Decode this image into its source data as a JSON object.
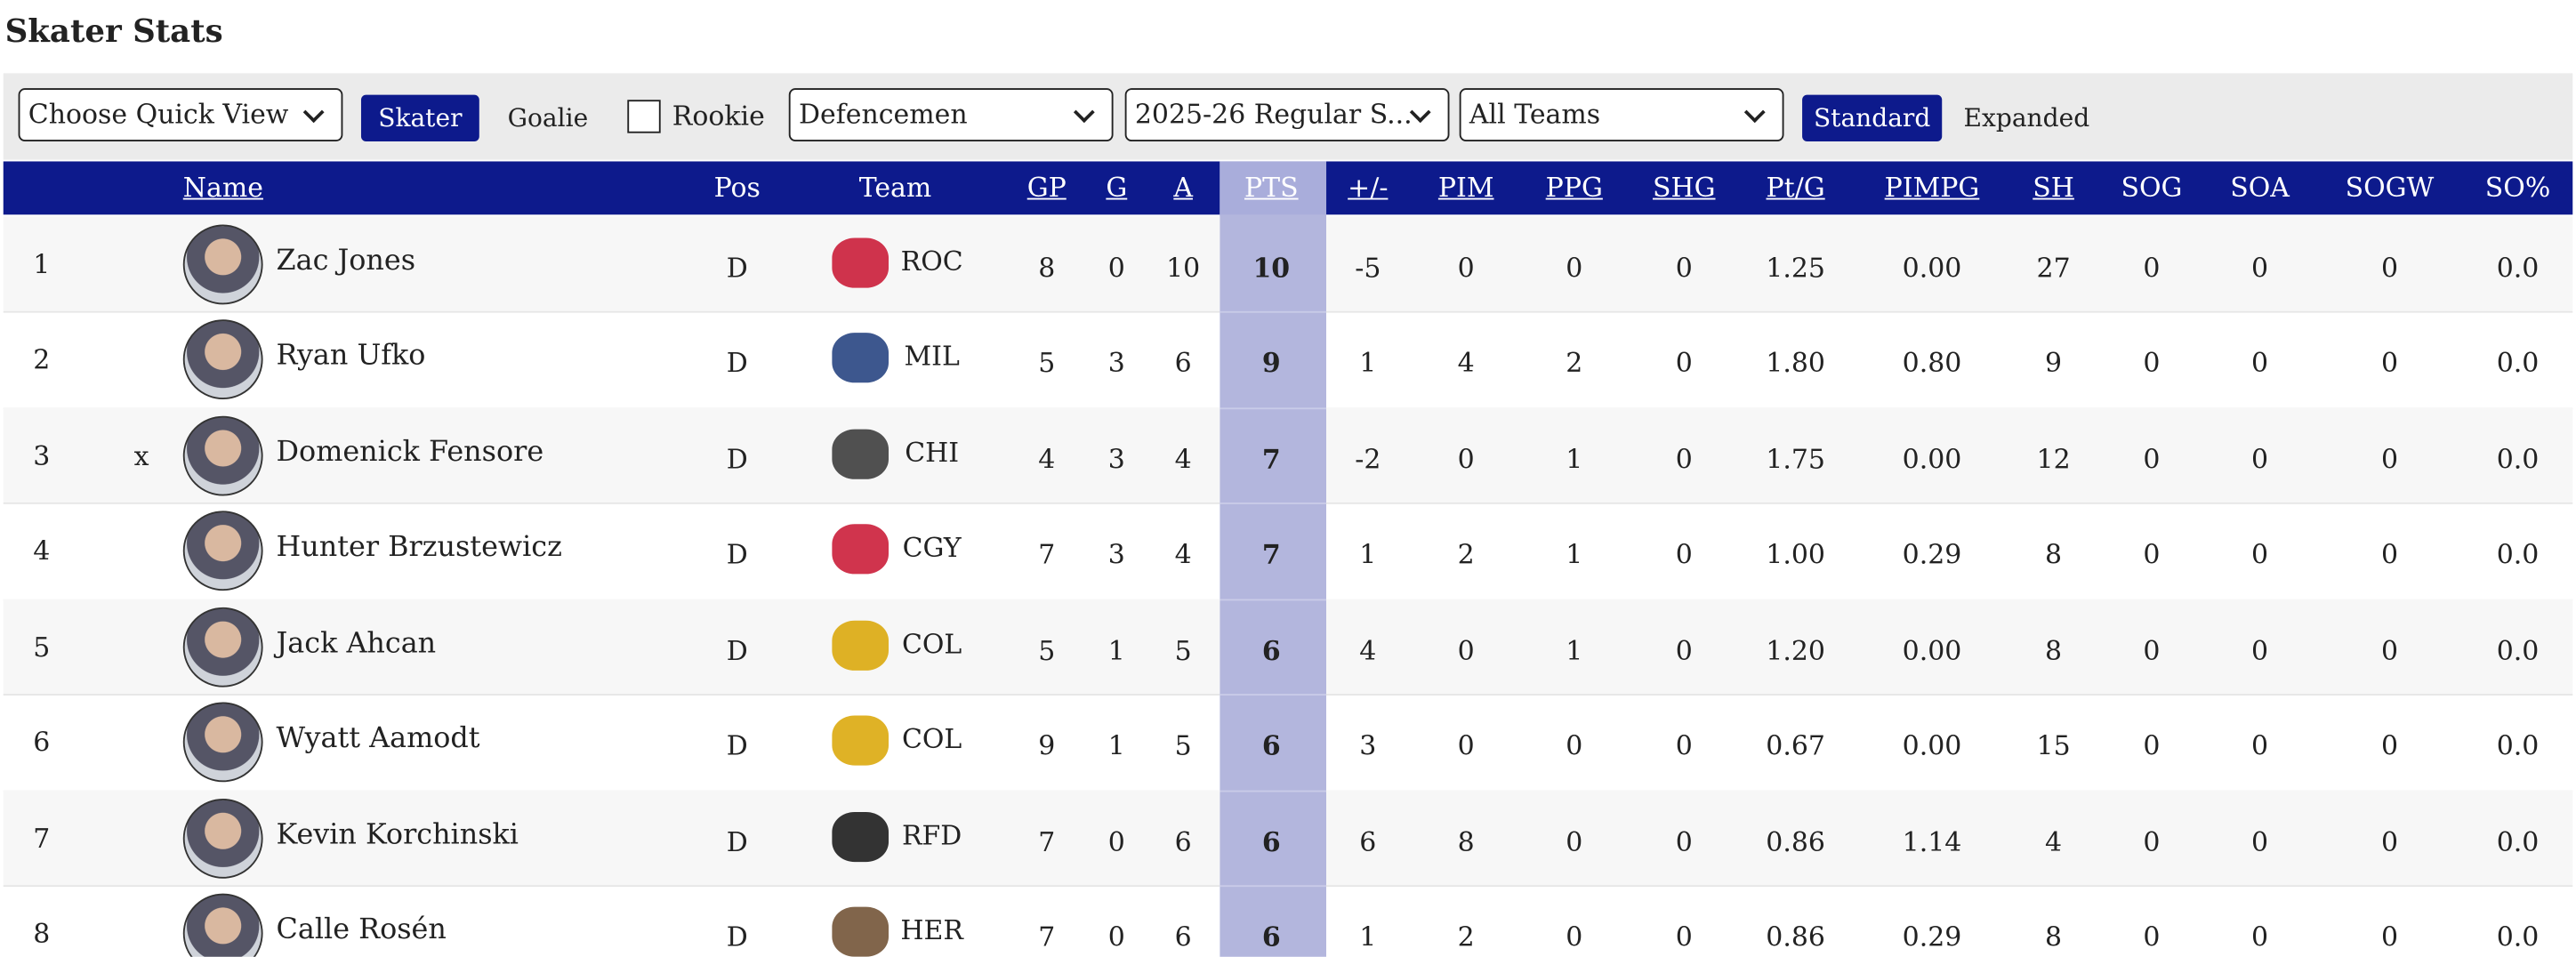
{
  "title": "Skater Stats",
  "toolbar": {
    "quick_view": "Choose Quick View",
    "skater": "Skater",
    "goalie": "Goalie",
    "rookie": "Rookie",
    "position": "Defencemen",
    "season": "2025-26 Regular S...",
    "teams": "All Teams",
    "standard": "Standard",
    "expanded": "Expanded"
  },
  "table": {
    "columns": [
      "Name",
      "Pos",
      "Team",
      "GP",
      "G",
      "A",
      "PTS",
      "+/-",
      "PIM",
      "PPG",
      "SHG",
      "Pt/G",
      "PIMPG",
      "SH",
      "SOG",
      "SOA",
      "SOGW",
      "SO%"
    ],
    "rows": [
      {
        "rank": 1,
        "name": "Zac Jones",
        "pos": "D",
        "team": "ROC",
        "stats": [
          8,
          0,
          10,
          10,
          -5,
          0,
          0,
          0,
          "1.25",
          "0.00",
          27,
          0,
          0,
          0,
          "0.0"
        ]
      },
      {
        "rank": 2,
        "name": "Ryan Ufko",
        "pos": "D",
        "team": "MIL",
        "stats": [
          5,
          3,
          6,
          9,
          1,
          4,
          2,
          0,
          "1.80",
          "0.80",
          9,
          0,
          0,
          0,
          "0.0"
        ]
      },
      {
        "rank": 3,
        "rookie": "x",
        "name": "Domenick Fensore",
        "pos": "D",
        "team": "CHI",
        "stats": [
          4,
          3,
          4,
          7,
          -2,
          0,
          1,
          0,
          "1.75",
          "0.00",
          12,
          0,
          0,
          0,
          "0.0"
        ]
      },
      {
        "rank": 4,
        "name": "Hunter Brzustewicz",
        "pos": "D",
        "team": "CGY",
        "stats": [
          7,
          3,
          4,
          7,
          1,
          2,
          1,
          0,
          "1.00",
          "0.29",
          8,
          0,
          0,
          0,
          "0.0"
        ]
      },
      {
        "rank": 5,
        "name": "Jack Ahcan",
        "pos": "D",
        "team": "COL",
        "stats": [
          5,
          1,
          5,
          6,
          4,
          0,
          1,
          0,
          "1.20",
          "0.00",
          8,
          0,
          0,
          0,
          "0.0"
        ]
      },
      {
        "rank": 6,
        "name": "Wyatt Aamodt",
        "pos": "D",
        "team": "COL",
        "stats": [
          9,
          1,
          5,
          6,
          3,
          0,
          0,
          0,
          "0.67",
          "0.00",
          15,
          0,
          0,
          0,
          "0.0"
        ]
      },
      {
        "rank": 7,
        "name": "Kevin Korchinski",
        "pos": "D",
        "team": "RFD",
        "stats": [
          7,
          0,
          6,
          6,
          6,
          8,
          0,
          0,
          "0.86",
          "1.14",
          4,
          0,
          0,
          0,
          "0.0"
        ]
      },
      {
        "rank": 8,
        "name": "Calle Rosén",
        "pos": "D",
        "team": "HER",
        "stats": [
          7,
          0,
          6,
          6,
          1,
          2,
          0,
          0,
          "0.86",
          "0.29",
          8,
          0,
          0,
          0,
          "0.0"
        ]
      }
    ]
  }
}
